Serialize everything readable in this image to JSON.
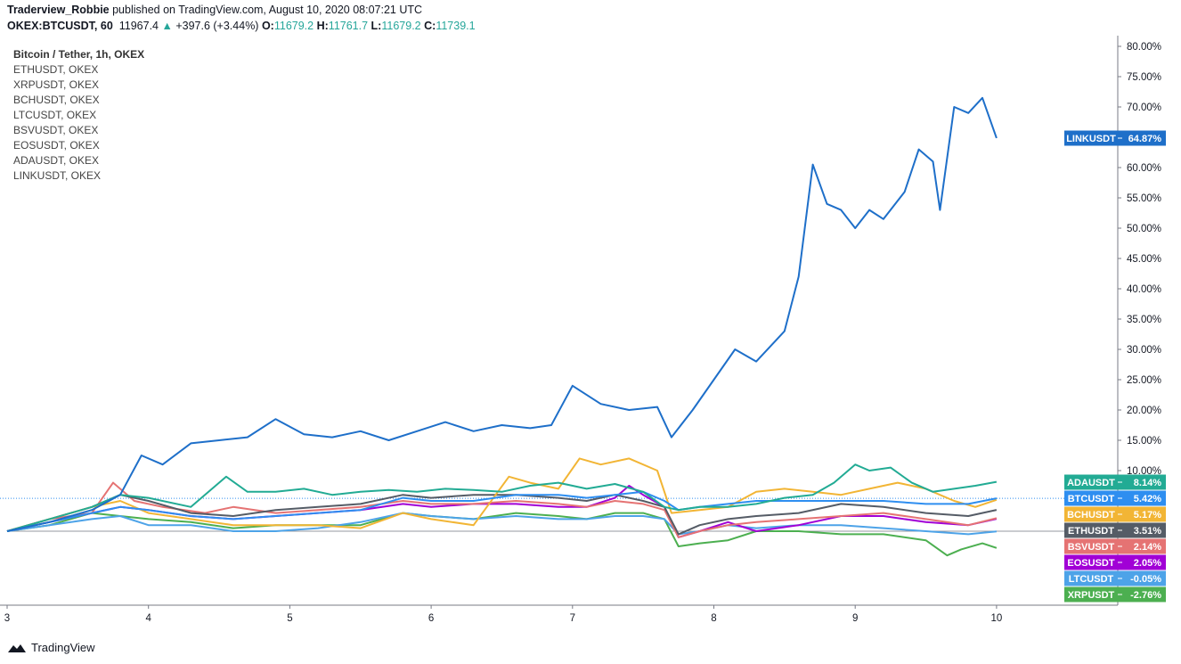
{
  "header": {
    "author": "Traderview_Robbie",
    "published_text": "published on TradingView.com, August 10, 2020 08:07:21 UTC",
    "symbol": "OKEX:BTCUSDT, 60",
    "last": "11967.4",
    "change": "+397.6 (+3.44%)",
    "o_label": "O:",
    "o": "11679.2",
    "h_label": "H:",
    "h": "11761.7",
    "l_label": "L:",
    "l": "11679.2",
    "c_label": "C:",
    "c": "11739.1"
  },
  "legend": {
    "main": "Bitcoin / Tether, 1h, OKEX",
    "items": [
      "ETHUSDT, OKEX",
      "XRPUSDT, OKEX",
      "BCHUSDT, OKEX",
      "LTCUSDT, OKEX",
      "BSVUSDT, OKEX",
      "EOSUSDT, OKEX",
      "ADAUSDT, OKEX",
      "LINKUSDT, OKEX"
    ]
  },
  "footer": {
    "brand": "TradingView",
    "logo_icon": "tradingview-logo-icon"
  },
  "chart_data": {
    "type": "line",
    "x_ticks": [
      "3",
      "4",
      "5",
      "6",
      "7",
      "8",
      "9",
      "10"
    ],
    "y_ticks": [
      "80.00%",
      "75.00%",
      "70.00%",
      "65.00%",
      "60.00%",
      "55.00%",
      "50.00%",
      "45.00%",
      "40.00%",
      "35.00%",
      "30.00%",
      "25.00%",
      "20.00%",
      "15.00%",
      "10.00%"
    ],
    "ylim": [
      -12,
      81
    ],
    "xlim": [
      3,
      10.85
    ],
    "series": [
      {
        "name": "LINKUSDT",
        "color": "#1e6fc9",
        "label": "LINKUSDT",
        "value_label": "64.87%",
        "x": [
          3,
          3.3,
          3.6,
          3.8,
          3.95,
          4.1,
          4.3,
          4.5,
          4.7,
          4.9,
          5.1,
          5.3,
          5.5,
          5.7,
          5.9,
          6.1,
          6.3,
          6.5,
          6.7,
          6.85,
          7.0,
          7.2,
          7.4,
          7.6,
          7.7,
          7.85,
          8.0,
          8.15,
          8.3,
          8.5,
          8.6,
          8.7,
          8.8,
          8.9,
          9.0,
          9.1,
          9.2,
          9.35,
          9.45,
          9.55,
          9.6,
          9.7,
          9.8,
          9.9,
          10.0
        ],
        "y": [
          0,
          1.5,
          3.5,
          6,
          12.5,
          11,
          14.5,
          15,
          15.5,
          18.5,
          16,
          15.5,
          16.5,
          15,
          16.5,
          18,
          16.5,
          17.5,
          17,
          17.5,
          24,
          21,
          20,
          20.5,
          15.5,
          20,
          25,
          30,
          28,
          33,
          42,
          60.5,
          54,
          53,
          50,
          53,
          51.5,
          56,
          63,
          61,
          53,
          70,
          69,
          71.5,
          64.87
        ]
      },
      {
        "name": "ADAUSDT",
        "color": "#22ab94",
        "label": "ADAUSDT",
        "value_label": "8.14%",
        "x": [
          3,
          3.3,
          3.6,
          3.8,
          4.0,
          4.3,
          4.55,
          4.7,
          4.9,
          5.1,
          5.3,
          5.5,
          5.7,
          5.9,
          6.1,
          6.3,
          6.5,
          6.7,
          6.9,
          7.1,
          7.3,
          7.5,
          7.65,
          7.75,
          7.9,
          8.1,
          8.3,
          8.5,
          8.7,
          8.85,
          9.0,
          9.1,
          9.25,
          9.4,
          9.55,
          9.7,
          9.85,
          10.0
        ],
        "y": [
          0,
          2,
          4,
          6,
          5.5,
          4,
          9,
          6.5,
          6.5,
          7,
          6,
          6.5,
          6.8,
          6.5,
          7,
          6.8,
          6.5,
          7.5,
          8,
          7,
          7.8,
          6.5,
          4,
          3.5,
          4,
          4,
          4.5,
          5.5,
          6,
          8,
          11,
          10,
          10.5,
          8,
          6.5,
          7,
          7.5,
          8.14
        ]
      },
      {
        "name": "BTCUSDT",
        "color": "#2e8ef0",
        "label": "BTCUSDT",
        "value_label": "5.42%",
        "x": [
          3,
          3.3,
          3.6,
          3.8,
          4.0,
          4.3,
          4.6,
          4.9,
          5.2,
          5.5,
          5.8,
          6.0,
          6.3,
          6.6,
          6.9,
          7.1,
          7.3,
          7.5,
          7.65,
          7.75,
          7.9,
          8.1,
          8.3,
          8.6,
          8.9,
          9.2,
          9.5,
          9.8,
          10.0
        ],
        "y": [
          0,
          1.5,
          3,
          4,
          3.5,
          2.5,
          2,
          2.5,
          3,
          3.5,
          5.5,
          5,
          5,
          6,
          6,
          5.5,
          6,
          6.5,
          5,
          3.5,
          4,
          4.5,
          5,
          5,
          5,
          5,
          4.5,
          4.5,
          5.42
        ]
      },
      {
        "name": "BCHUSDT",
        "color": "#f2b535",
        "label": "BCHUSDT",
        "value_label": "5.17%",
        "x": [
          3,
          3.3,
          3.6,
          3.8,
          4.0,
          4.3,
          4.6,
          4.9,
          5.2,
          5.5,
          5.8,
          6.0,
          6.3,
          6.55,
          6.7,
          6.9,
          7.05,
          7.2,
          7.4,
          7.6,
          7.7,
          7.9,
          8.1,
          8.3,
          8.5,
          8.7,
          8.9,
          9.1,
          9.3,
          9.5,
          9.7,
          9.85,
          10.0
        ],
        "y": [
          0,
          2,
          4,
          5,
          3,
          2,
          1,
          1,
          1,
          0.5,
          3,
          2,
          1,
          9,
          8,
          7,
          12,
          11,
          12,
          10,
          3,
          3.5,
          4,
          6.5,
          7,
          6.5,
          6,
          7,
          8,
          7,
          5,
          4,
          5.17
        ]
      },
      {
        "name": "ETHUSDT",
        "color": "#555c66",
        "label": "ETHUSDT",
        "value_label": "3.51%",
        "x": [
          3,
          3.3,
          3.6,
          3.8,
          4.0,
          4.3,
          4.6,
          4.9,
          5.2,
          5.5,
          5.8,
          6.0,
          6.3,
          6.6,
          6.9,
          7.1,
          7.3,
          7.5,
          7.65,
          7.75,
          7.9,
          8.1,
          8.3,
          8.6,
          8.9,
          9.2,
          9.5,
          9.8,
          10.0
        ],
        "y": [
          0,
          2,
          4,
          6,
          5,
          3,
          2.5,
          3.5,
          4,
          4.5,
          6,
          5.5,
          6,
          6,
          5.5,
          5,
          6,
          5,
          4,
          -0.5,
          1,
          2,
          2.5,
          3,
          4.5,
          4,
          3,
          2.5,
          3.51
        ]
      },
      {
        "name": "BSVUSDT",
        "color": "#e57373",
        "label": "BSVUSDT",
        "value_label": "2.14%",
        "x": [
          3,
          3.3,
          3.6,
          3.75,
          3.9,
          4.1,
          4.4,
          4.6,
          4.9,
          5.2,
          5.5,
          5.8,
          6.0,
          6.3,
          6.6,
          6.9,
          7.1,
          7.3,
          7.5,
          7.65,
          7.75,
          7.9,
          8.1,
          8.3,
          8.6,
          8.9,
          9.2,
          9.5,
          9.8,
          10.0
        ],
        "y": [
          0,
          2,
          3,
          8,
          5,
          4,
          3,
          4,
          3,
          3.5,
          4,
          5,
          4.5,
          4.5,
          5,
          4.5,
          4,
          5,
          4.5,
          3.5,
          -1,
          0,
          1,
          1.5,
          2,
          2.5,
          3,
          2,
          1,
          2.14
        ]
      },
      {
        "name": "EOSUSDT",
        "color": "#a100d6",
        "label": "EOSUSDT",
        "value_label": "2.05%",
        "x": [
          3,
          3.3,
          3.6,
          3.8,
          4.0,
          4.3,
          4.6,
          4.9,
          5.2,
          5.5,
          5.8,
          6.0,
          6.3,
          6.6,
          6.9,
          7.1,
          7.3,
          7.4,
          7.5,
          7.65,
          7.75,
          7.9,
          8.1,
          8.3,
          8.6,
          8.9,
          9.2,
          9.5,
          9.8,
          10.0
        ],
        "y": [
          0,
          1.5,
          3,
          4,
          3.5,
          2.5,
          2,
          2.5,
          3,
          3.5,
          4.5,
          4,
          4.5,
          4.5,
          4,
          4,
          5.5,
          7.5,
          6,
          4,
          -1,
          0,
          1.5,
          0,
          1,
          2.5,
          2.5,
          1.5,
          1,
          2.05
        ]
      },
      {
        "name": "LTCUSDT",
        "color": "#4da3e8",
        "label": "LTCUSDT",
        "value_label": "-0.05%",
        "x": [
          3,
          3.3,
          3.6,
          3.8,
          4.0,
          4.3,
          4.6,
          4.9,
          5.2,
          5.5,
          5.8,
          6.0,
          6.3,
          6.6,
          6.9,
          7.1,
          7.3,
          7.5,
          7.65,
          7.75,
          7.9,
          8.1,
          8.3,
          8.6,
          8.9,
          9.2,
          9.5,
          9.8,
          10.0
        ],
        "y": [
          0,
          1,
          2,
          2.5,
          1,
          1,
          0,
          0,
          0.5,
          1.5,
          3,
          2.5,
          2,
          2.5,
          2,
          2,
          2.5,
          2.5,
          2,
          -0.5,
          0,
          1,
          0.5,
          1,
          1,
          0.5,
          0,
          -0.5,
          -0.05
        ]
      },
      {
        "name": "XRPUSDT",
        "color": "#4caf50",
        "label": "XRPUSDT",
        "value_label": "-2.76%",
        "x": [
          3,
          3.3,
          3.6,
          3.8,
          4.0,
          4.3,
          4.6,
          4.9,
          5.2,
          5.5,
          5.8,
          6.0,
          6.3,
          6.6,
          6.9,
          7.1,
          7.3,
          7.5,
          7.65,
          7.75,
          7.9,
          8.1,
          8.3,
          8.6,
          8.9,
          9.2,
          9.5,
          9.65,
          9.75,
          9.9,
          10.0
        ],
        "y": [
          0,
          1,
          3,
          2.5,
          2,
          1.5,
          0.5,
          1,
          1,
          1,
          3,
          2.5,
          2,
          3,
          2.5,
          2,
          3,
          3,
          2,
          -2.5,
          -2,
          -1.5,
          0,
          0,
          -0.5,
          -0.5,
          -1.5,
          -4,
          -3,
          -2,
          -2.76
        ]
      }
    ]
  }
}
